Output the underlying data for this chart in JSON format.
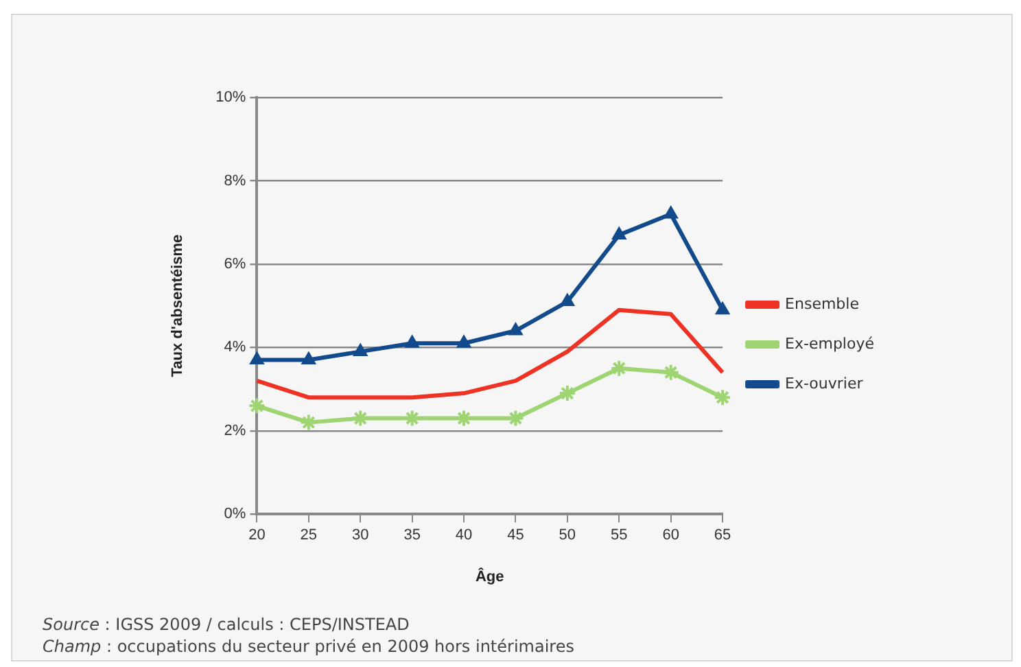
{
  "chart_data": {
    "type": "line",
    "xlabel": "Âge",
    "ylabel": "Taux d'absentéisme",
    "categories": [
      "20",
      "25",
      "30",
      "35",
      "40",
      "45",
      "50",
      "55",
      "60",
      "65"
    ],
    "series": [
      {
        "name": "Ensemble",
        "color": "#ee3224",
        "marker": "none",
        "values": [
          3.2,
          2.8,
          2.8,
          2.8,
          2.9,
          3.2,
          3.9,
          4.9,
          4.8,
          3.4
        ]
      },
      {
        "name": "Ex-employé",
        "color": "#9ed572",
        "marker": "cross",
        "values": [
          2.6,
          2.2,
          2.3,
          2.3,
          2.3,
          2.3,
          2.9,
          3.5,
          3.4,
          2.8
        ]
      },
      {
        "name": "Ex-ouvrier",
        "color": "#124a8c",
        "marker": "triangle",
        "values": [
          3.7,
          3.7,
          3.9,
          4.1,
          4.1,
          4.4,
          5.1,
          6.7,
          7.2,
          4.9
        ]
      }
    ],
    "ylim": [
      0,
      10
    ],
    "yticks": [
      {
        "value": 0,
        "label": "0%"
      },
      {
        "value": 2,
        "label": "2%"
      },
      {
        "value": 4,
        "label": "4%"
      },
      {
        "value": 6,
        "label": "6%"
      },
      {
        "value": 8,
        "label": "8%"
      },
      {
        "value": 10,
        "label": "10%"
      }
    ],
    "grid": "y",
    "legend": "right",
    "line_style": "solid",
    "annotations": [
      "Source : IGSS 2009 / calculs : CEPS/INSTEAD",
      "Champ : occupations du secteur privé en 2009 hors intérimaires"
    ]
  }
}
